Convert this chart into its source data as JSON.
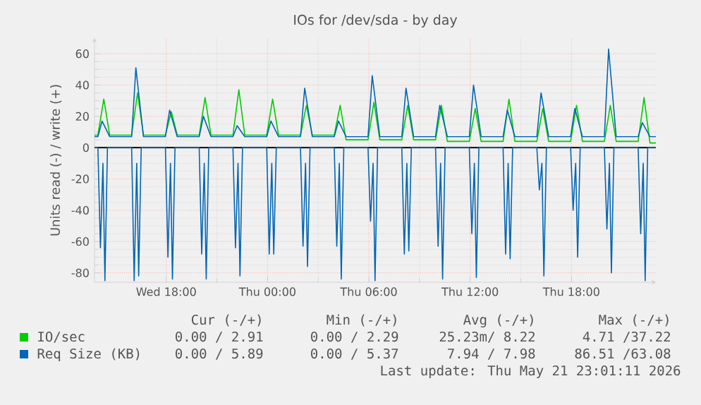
{
  "chart_data": {
    "type": "line",
    "title": "IOs for /dev/sda - by day",
    "ylabel": "Units read (-) / write (+)",
    "xlim": [
      "2026-05-20T13:45",
      "2026-05-21T23:00"
    ],
    "ylim": [
      -86,
      70
    ],
    "xticks": [
      {
        "value": "2026-05-20T18:00",
        "label": "Wed 18:00"
      },
      {
        "value": "2026-05-21T00:00",
        "label": "Thu 00:00"
      },
      {
        "value": "2026-05-21T06:00",
        "label": "Thu 06:00"
      },
      {
        "value": "2026-05-21T12:00",
        "label": "Thu 12:00"
      },
      {
        "value": "2026-05-21T18:00",
        "label": "Thu 18:00"
      }
    ],
    "yticks": [
      -80,
      -60,
      -40,
      -20,
      0,
      20,
      40,
      60
    ],
    "grid": true,
    "legend": "bottom",
    "marker": "none",
    "line_style": "solid",
    "ref_lines": [
      {
        "axis": "y",
        "value": 0,
        "color": "#000000"
      }
    ],
    "series": [
      {
        "name": "IO/sec",
        "color": "#00cc00",
        "x": [
          "2026-05-20T13:45",
          "2026-05-20T13:57",
          "2026-05-20T14:18",
          "2026-05-20T14:39",
          "2026-05-20T15:57",
          "2026-05-20T16:18",
          "2026-05-20T16:39",
          "2026-05-20T17:57",
          "2026-05-20T18:18",
          "2026-05-20T18:39",
          "2026-05-20T19:57",
          "2026-05-20T20:18",
          "2026-05-20T20:39",
          "2026-05-20T21:57",
          "2026-05-20T22:18",
          "2026-05-20T22:39",
          "2026-05-20T23:57",
          "2026-05-21T00:18",
          "2026-05-21T00:39",
          "2026-05-21T01:57",
          "2026-05-21T02:18",
          "2026-05-21T02:39",
          "2026-05-21T03:57",
          "2026-05-21T04:18",
          "2026-05-21T04:39",
          "2026-05-21T05:57",
          "2026-05-21T06:18",
          "2026-05-21T06:39",
          "2026-05-21T07:57",
          "2026-05-21T08:18",
          "2026-05-21T08:39",
          "2026-05-21T09:57",
          "2026-05-21T10:18",
          "2026-05-21T10:39",
          "2026-05-21T11:57",
          "2026-05-21T12:18",
          "2026-05-21T12:39",
          "2026-05-21T13:57",
          "2026-05-21T14:18",
          "2026-05-21T14:39",
          "2026-05-21T15:57",
          "2026-05-21T16:18",
          "2026-05-21T16:39",
          "2026-05-21T17:57",
          "2026-05-21T18:18",
          "2026-05-21T18:39",
          "2026-05-21T19:57",
          "2026-05-21T20:18",
          "2026-05-21T20:39",
          "2026-05-21T21:57",
          "2026-05-21T22:18",
          "2026-05-21T22:39",
          "2026-05-21T23:00"
        ],
        "values": [
          8,
          8,
          31,
          8,
          8,
          35,
          8,
          8,
          23,
          8,
          8,
          32,
          8,
          8,
          37,
          8,
          8,
          31,
          8,
          8,
          27,
          8,
          8,
          27,
          5,
          5,
          29,
          5,
          5,
          27,
          5,
          5,
          27,
          4,
          4,
          25,
          4,
          4,
          31,
          4,
          4,
          25,
          4,
          4,
          27,
          4,
          4,
          27,
          4,
          4,
          32,
          3,
          3
        ]
      },
      {
        "name": "Req Size (KB)",
        "color": "#0066b3",
        "x": [
          "2026-05-20T13:45",
          "2026-05-20T13:57",
          "2026-05-20T14:12",
          "2026-05-20T14:39",
          "2026-05-20T15:57",
          "2026-05-20T16:12",
          "2026-05-20T16:39",
          "2026-05-20T17:57",
          "2026-05-20T18:12",
          "2026-05-20T18:39",
          "2026-05-20T19:57",
          "2026-05-20T20:12",
          "2026-05-20T20:39",
          "2026-05-20T21:57",
          "2026-05-20T22:12",
          "2026-05-20T22:39",
          "2026-05-20T23:57",
          "2026-05-21T00:12",
          "2026-05-21T00:39",
          "2026-05-21T01:57",
          "2026-05-21T02:12",
          "2026-05-21T02:39",
          "2026-05-21T03:57",
          "2026-05-21T04:12",
          "2026-05-21T04:39",
          "2026-05-21T05:57",
          "2026-05-21T06:12",
          "2026-05-21T06:39",
          "2026-05-21T07:57",
          "2026-05-21T08:12",
          "2026-05-21T08:39",
          "2026-05-21T09:57",
          "2026-05-21T10:12",
          "2026-05-21T10:39",
          "2026-05-21T11:57",
          "2026-05-21T12:12",
          "2026-05-21T12:39",
          "2026-05-21T13:57",
          "2026-05-21T14:12",
          "2026-05-21T14:39",
          "2026-05-21T15:57",
          "2026-05-21T16:12",
          "2026-05-21T16:39",
          "2026-05-21T17:57",
          "2026-05-21T18:12",
          "2026-05-21T18:39",
          "2026-05-21T19:57",
          "2026-05-21T20:12",
          "2026-05-21T20:39",
          "2026-05-21T21:57",
          "2026-05-21T22:12",
          "2026-05-21T22:39",
          "2026-05-21T23:00"
        ],
        "values": [
          7,
          7,
          17,
          7,
          7,
          51,
          7,
          7,
          24,
          7,
          7,
          20,
          7,
          7,
          14,
          7,
          7,
          17,
          7,
          7,
          38,
          7,
          7,
          17,
          7,
          7,
          46,
          7,
          7,
          38,
          7,
          7,
          27,
          7,
          7,
          40,
          7,
          7,
          24,
          7,
          7,
          35,
          7,
          7,
          25,
          7,
          7,
          63,
          7,
          7,
          16,
          7,
          7
        ]
      },
      {
        "color": "#0066b3",
        "x": [
          "2026-05-20T13:45",
          "2026-05-20T13:57",
          "2026-05-20T14:06",
          "2026-05-20T14:15",
          "2026-05-20T14:22",
          "2026-05-20T14:31",
          "2026-05-20T15:57",
          "2026-05-20T16:06",
          "2026-05-20T16:15",
          "2026-05-20T16:22",
          "2026-05-20T16:31",
          "2026-05-20T17:57",
          "2026-05-20T18:06",
          "2026-05-20T18:15",
          "2026-05-20T18:22",
          "2026-05-20T18:31",
          "2026-05-20T19:57",
          "2026-05-20T20:06",
          "2026-05-20T20:15",
          "2026-05-20T20:22",
          "2026-05-20T20:31",
          "2026-05-20T21:57",
          "2026-05-20T22:06",
          "2026-05-20T22:15",
          "2026-05-20T22:22",
          "2026-05-20T22:31",
          "2026-05-20T23:57",
          "2026-05-21T00:06",
          "2026-05-21T00:15",
          "2026-05-21T00:22",
          "2026-05-21T00:31",
          "2026-05-21T01:57",
          "2026-05-21T02:06",
          "2026-05-21T02:15",
          "2026-05-21T02:22",
          "2026-05-21T02:31",
          "2026-05-21T03:57",
          "2026-05-21T04:06",
          "2026-05-21T04:15",
          "2026-05-21T04:22",
          "2026-05-21T04:31",
          "2026-05-21T05:57",
          "2026-05-21T06:06",
          "2026-05-21T06:15",
          "2026-05-21T06:22",
          "2026-05-21T06:31",
          "2026-05-21T07:57",
          "2026-05-21T08:06",
          "2026-05-21T08:15",
          "2026-05-21T08:22",
          "2026-05-21T08:31",
          "2026-05-21T09:57",
          "2026-05-21T10:06",
          "2026-05-21T10:15",
          "2026-05-21T10:22",
          "2026-05-21T10:31",
          "2026-05-21T11:57",
          "2026-05-21T12:06",
          "2026-05-21T12:15",
          "2026-05-21T12:22",
          "2026-05-21T12:31",
          "2026-05-21T13:57",
          "2026-05-21T14:06",
          "2026-05-21T14:15",
          "2026-05-21T14:22",
          "2026-05-21T14:31",
          "2026-05-21T15:57",
          "2026-05-21T16:06",
          "2026-05-21T16:15",
          "2026-05-21T16:22",
          "2026-05-21T16:31",
          "2026-05-21T17:57",
          "2026-05-21T18:06",
          "2026-05-21T18:15",
          "2026-05-21T18:22",
          "2026-05-21T18:31",
          "2026-05-21T19:57",
          "2026-05-21T20:06",
          "2026-05-21T20:15",
          "2026-05-21T20:22",
          "2026-05-21T20:31",
          "2026-05-21T21:57",
          "2026-05-21T22:06",
          "2026-05-21T22:15",
          "2026-05-21T22:22",
          "2026-05-21T22:31",
          "2026-05-21T23:00"
        ],
        "values": [
          0,
          0,
          -64,
          -10,
          -85,
          0,
          0,
          -85,
          -10,
          -82,
          0,
          0,
          -70,
          -10,
          -84,
          0,
          0,
          -68,
          -10,
          -84,
          0,
          0,
          -64,
          -10,
          -82,
          0,
          0,
          -68,
          -10,
          -68,
          0,
          0,
          -63,
          -10,
          -76,
          0,
          0,
          -63,
          -10,
          -84,
          0,
          0,
          -47,
          -10,
          -85,
          0,
          0,
          -68,
          -10,
          -66,
          0,
          0,
          -63,
          -10,
          -84,
          0,
          0,
          -55,
          -10,
          -83,
          0,
          0,
          -68,
          -10,
          -71,
          0,
          0,
          -27,
          -10,
          -82,
          0,
          0,
          -40,
          -10,
          -70,
          0,
          0,
          -52,
          -10,
          -80,
          0,
          0,
          -55,
          -10,
          -85,
          0,
          0
        ]
      }
    ],
    "annotations": [
      "Cur (-/+)",
      "Min (-/+)",
      "Avg (-/+)",
      "Max (-/+)",
      "0.00 / 2.91",
      "0.00 / 2.29",
      "25.23m/ 8.22",
      "4.71 /37.22",
      "0.00 / 5.89",
      "0.00 / 5.37",
      "7.94 / 7.98",
      "86.51 /63.08",
      "Last update: Thu May 21 23:01:11 2026"
    ]
  }
}
